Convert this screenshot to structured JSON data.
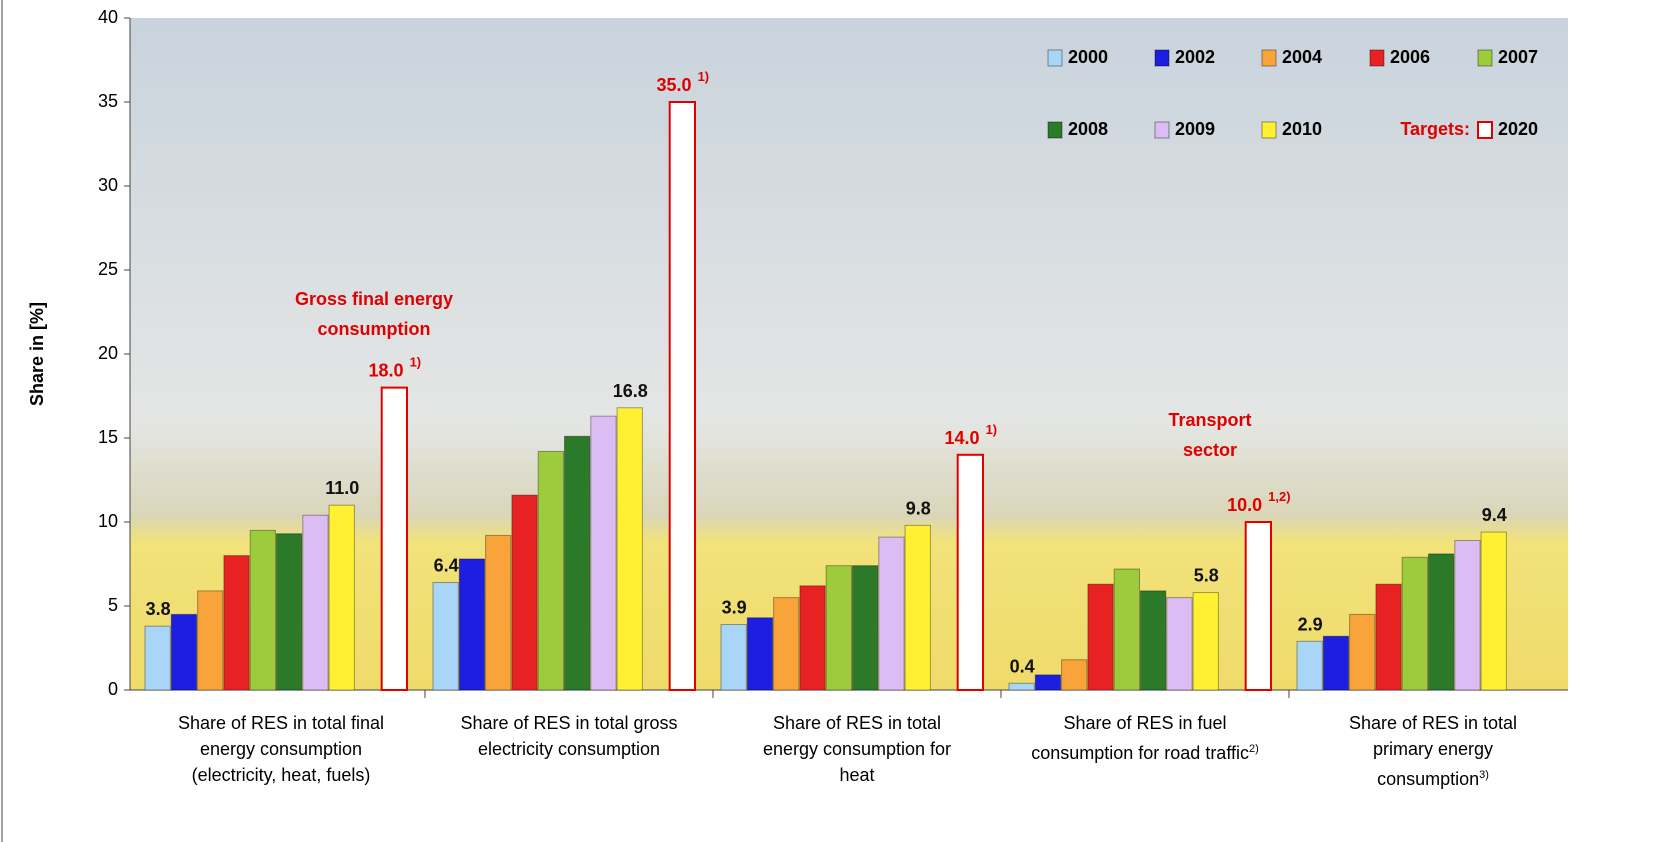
{
  "chart_data": {
    "type": "bar",
    "y_label": "Share in [%]",
    "categories": [
      "Share of RES in total final\nenergy consumption\n(electricity, heat, fuels)",
      "Share of RES in total gross\nelectricity consumption",
      "Share of RES in total\nenergy consumption for\nheat",
      "Share of RES in fuel\nconsumption for road traffic",
      "Share of RES in total\nprimary energy\nconsumption"
    ],
    "category_notes": [
      null,
      null,
      null,
      "2)",
      "3)"
    ],
    "series": [
      {
        "name": "2000",
        "color": "#a9d5f7",
        "values": [
          3.8,
          6.4,
          3.9,
          0.4,
          2.9
        ],
        "value_labels": [
          "3.8",
          "6.4",
          "3.9",
          "0.4",
          "2.9"
        ]
      },
      {
        "name": "2002",
        "color": "#1c1ee0",
        "values": [
          4.5,
          7.8,
          4.3,
          0.9,
          3.2
        ]
      },
      {
        "name": "2004",
        "color": "#f9a43a",
        "values": [
          5.9,
          9.2,
          5.5,
          1.8,
          4.5
        ]
      },
      {
        "name": "2006",
        "color": "#e82222",
        "values": [
          8.0,
          11.6,
          6.2,
          6.3,
          6.3
        ]
      },
      {
        "name": "2007",
        "color": "#9ccc3c",
        "values": [
          9.5,
          14.2,
          7.4,
          7.2,
          7.9
        ]
      },
      {
        "name": "2008",
        "color": "#2a7a2a",
        "values": [
          9.3,
          15.1,
          7.4,
          5.9,
          8.1
        ]
      },
      {
        "name": "2009",
        "color": "#dcbdf3",
        "values": [
          10.4,
          16.3,
          9.1,
          5.5,
          8.9
        ]
      },
      {
        "name": "2010",
        "color": "#fff033",
        "values": [
          11.0,
          16.8,
          9.8,
          5.8,
          9.4
        ],
        "value_labels": [
          "11.0",
          "16.8",
          "9.8",
          "5.8",
          "9.4"
        ]
      },
      {
        "name": "2020",
        "color": "#ffffff",
        "edge_color": "#e00000",
        "values": [
          18.0,
          35.0,
          14.0,
          10.0,
          null
        ],
        "value_labels": [
          "18.0",
          "35.0",
          "14.0",
          "10.0",
          null
        ],
        "value_notes": [
          "1)",
          "1)",
          "1)",
          "1,2)",
          null
        ]
      }
    ],
    "legend_note": "Targets:",
    "annotations": [
      "Gross final energy\nconsumption",
      "Transport\nsector"
    ],
    "ylim": [
      0,
      40
    ],
    "yticks": [
      0,
      5,
      10,
      15,
      20,
      25,
      30,
      35,
      40
    ],
    "grid": false,
    "legend": "upper right"
  }
}
